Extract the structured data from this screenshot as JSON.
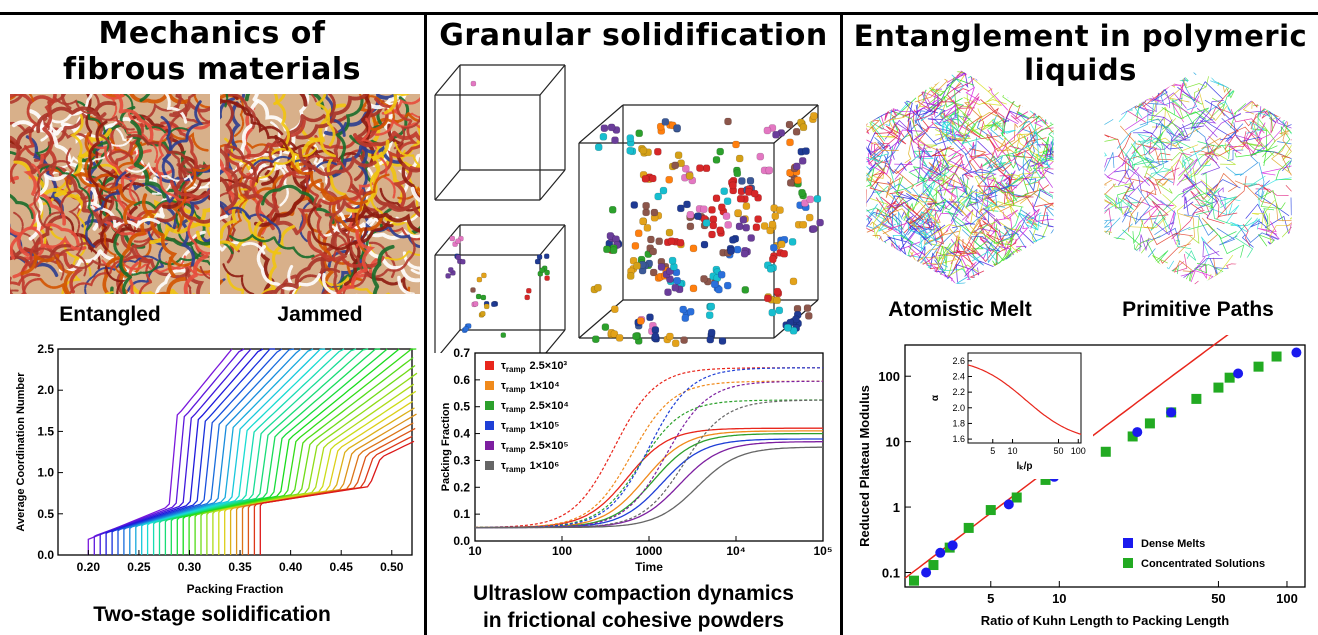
{
  "panels": {
    "fibrous": {
      "title_line1": "Mechanics of",
      "title_line2": "fibrous materials",
      "image_labels": [
        "Entangled",
        "Jammed"
      ],
      "caption": "Two-stage solidification"
    },
    "granular": {
      "title": "Granular solidification",
      "caption_line1": "Ultraslow compaction dynamics",
      "caption_line2": "in frictional cohesive powders"
    },
    "polymer": {
      "title": "Entanglement in polymeric liquids",
      "image_labels": [
        "Atomistic Melt",
        "Primitive Paths"
      ]
    }
  },
  "chart_data": [
    {
      "type": "line",
      "xlabel": "Packing Fraction",
      "ylabel": "Average Coordination Number",
      "xlim": [
        0.17,
        0.52
      ],
      "ylim": [
        0.0,
        2.5
      ],
      "xticks": [
        "0.20",
        "0.25",
        "0.30",
        "0.35",
        "0.40",
        "0.45",
        "0.50"
      ],
      "yticks": [
        "0.0",
        "0.5",
        "1.0",
        "1.5",
        "2.0",
        "2.5"
      ],
      "series_count": 30,
      "color_map": "rainbow purple-to-red",
      "series_start_x_range": [
        0.2,
        0.37
      ],
      "jump_x_range": [
        0.28,
        0.48
      ]
    },
    {
      "type": "line",
      "xlabel": "Time",
      "ylabel": "Packing Fraction",
      "xscale": "log",
      "xlim": [
        10,
        100000
      ],
      "ylim": [
        0.0,
        0.7
      ],
      "xticks": [
        "10",
        "100",
        "1000",
        "10⁴",
        "10⁵"
      ],
      "yticks": [
        "0.0",
        "0.1",
        "0.2",
        "0.3",
        "0.4",
        "0.5",
        "0.6",
        "0.7"
      ],
      "legend_position": "top-left",
      "legend": [
        {
          "label": "τ",
          "sub": "ramp",
          "value": "2.5×10³",
          "color": "#e8261c"
        },
        {
          "label": "τ",
          "sub": "ramp",
          "value": "1×10⁴",
          "color": "#f08a1c"
        },
        {
          "label": "τ",
          "sub": "ramp",
          "value": "2.5×10⁴",
          "color": "#2ca02c"
        },
        {
          "label": "τ",
          "sub": "ramp",
          "value": "1×10⁵",
          "color": "#1f3fd6"
        },
        {
          "label": "τ",
          "sub": "ramp",
          "value": "2.5×10⁵",
          "color": "#7d1fa0"
        },
        {
          "label": "τ",
          "sub": "ramp",
          "value": "1×10⁶",
          "color": "#666666"
        }
      ],
      "series": [
        {
          "color": "#e8261c",
          "final": 0.42,
          "mid_logt": 2.75
        },
        {
          "color": "#f08a1c",
          "final": 0.41,
          "mid_logt": 2.95
        },
        {
          "color": "#2ca02c",
          "final": 0.4,
          "mid_logt": 3.05
        },
        {
          "color": "#1f3fd6",
          "final": 0.38,
          "mid_logt": 3.15
        },
        {
          "color": "#7d1fa0",
          "final": 0.37,
          "mid_logt": 3.35
        },
        {
          "color": "#666666",
          "final": 0.35,
          "mid_logt": 3.55
        }
      ],
      "dashed_plateaus": [
        0.645,
        0.595,
        0.525
      ]
    },
    {
      "type": "scatter",
      "xlabel": "Ratio of Kuhn Length to Packing Length",
      "ylabel": "Reduced Plateau Modulus",
      "xscale": "log",
      "yscale": "log",
      "xlim": [
        2.1,
        120
      ],
      "ylim": [
        0.06,
        300
      ],
      "xticks": [
        "5",
        "10",
        "50",
        "100"
      ],
      "yticks": [
        "0.1",
        "1",
        "10",
        "100"
      ],
      "legend_position": "bottom-right",
      "series": [
        {
          "name": "Dense Melts",
          "color": "#1a1aee",
          "marker": "circle",
          "points": [
            [
              2.6,
              0.1
            ],
            [
              3.0,
              0.2
            ],
            [
              3.4,
              0.26
            ],
            [
              6.0,
              1.1
            ],
            [
              9.5,
              2.9
            ],
            [
              13,
              4.5
            ],
            [
              22,
              14
            ],
            [
              31,
              28
            ],
            [
              61,
              110
            ],
            [
              110,
              230
            ]
          ]
        },
        {
          "name": "Concentrated Solutions",
          "color": "#22aa22",
          "marker": "square",
          "points": [
            [
              2.3,
              0.075
            ],
            [
              2.8,
              0.13
            ],
            [
              3.3,
              0.24
            ],
            [
              4.0,
              0.48
            ],
            [
              5.0,
              0.9
            ],
            [
              6.5,
              1.4
            ],
            [
              8.7,
              2.6
            ],
            [
              11.5,
              4.5
            ],
            [
              16,
              7.0
            ],
            [
              21,
              12
            ],
            [
              25,
              19
            ],
            [
              31,
              28
            ],
            [
              40,
              45
            ],
            [
              50,
              67
            ],
            [
              56,
              95
            ],
            [
              75,
              140
            ],
            [
              90,
              200
            ]
          ]
        }
      ],
      "inset": {
        "xlabel": "lₖ/p",
        "ylabel": "α",
        "xscale": "log",
        "xlim": [
          2.1,
          110
        ],
        "ylim": [
          1.55,
          2.7
        ],
        "xticks": [
          "5",
          "10",
          "50",
          "100"
        ],
        "yticks": [
          "1.6",
          "1.8",
          "2.0",
          "2.2",
          "2.4",
          "2.6"
        ],
        "color": "#e8261c"
      }
    }
  ]
}
